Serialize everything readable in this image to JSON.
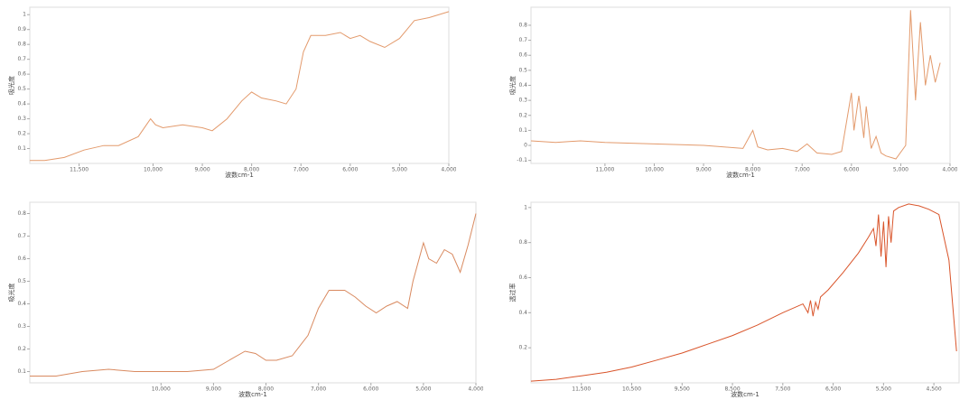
{
  "chart_data": [
    {
      "type": "line",
      "x_label": "波数cm-1",
      "y_label": "吸光度",
      "color": "#e39a6c",
      "xlim": [
        12500,
        4000
      ],
      "ylim": [
        0,
        1.05
      ],
      "xticks": [
        {
          "value": 11500,
          "label": "11,500"
        },
        {
          "value": 10000,
          "label": "10,000"
        },
        {
          "value": 9000,
          "label": "9,000"
        },
        {
          "value": 8000,
          "label": "8,000"
        },
        {
          "value": 7000,
          "label": "7,000"
        },
        {
          "value": 6000,
          "label": "6,000"
        },
        {
          "value": 5000,
          "label": "5,000"
        },
        {
          "value": 4000,
          "label": "4,000"
        }
      ],
      "yticks": [
        0.1,
        0.2,
        0.3,
        0.4,
        0.5,
        0.6,
        0.7,
        0.8,
        0.9,
        1
      ],
      "x": [
        12500,
        12200,
        11800,
        11400,
        11000,
        10700,
        10300,
        10050,
        9950,
        9800,
        9400,
        9000,
        8800,
        8500,
        8200,
        8000,
        7800,
        7500,
        7300,
        7100,
        6950,
        6800,
        6500,
        6200,
        6000,
        5800,
        5600,
        5300,
        5000,
        4700,
        4400,
        4000
      ],
      "values": [
        0.02,
        0.02,
        0.04,
        0.09,
        0.12,
        0.12,
        0.18,
        0.3,
        0.26,
        0.24,
        0.26,
        0.24,
        0.22,
        0.3,
        0.42,
        0.48,
        0.44,
        0.42,
        0.4,
        0.5,
        0.75,
        0.86,
        0.86,
        0.88,
        0.84,
        0.86,
        0.82,
        0.78,
        0.84,
        0.96,
        0.98,
        1.02
      ]
    },
    {
      "type": "line",
      "x_label": "波数cm-1",
      "y_label": "吸光度",
      "color": "#e39a6c",
      "xlim": [
        12500,
        4000
      ],
      "ylim": [
        -0.12,
        0.92
      ],
      "xticks": [
        {
          "value": 11000,
          "label": "11,000"
        },
        {
          "value": 10000,
          "label": "10,000"
        },
        {
          "value": 9000,
          "label": "9,000"
        },
        {
          "value": 8000,
          "label": "8,000"
        },
        {
          "value": 7000,
          "label": "7,000"
        },
        {
          "value": 6000,
          "label": "6,000"
        },
        {
          "value": 5000,
          "label": "5,000"
        },
        {
          "value": 4000,
          "label": "4,000"
        }
      ],
      "yticks": [
        -0.1,
        0,
        0.1,
        0.2,
        0.3,
        0.4,
        0.5,
        0.6,
        0.7,
        0.8
      ],
      "x": [
        12500,
        12000,
        11500,
        11000,
        10000,
        9000,
        8200,
        8000,
        7900,
        7700,
        7400,
        7100,
        6900,
        6700,
        6400,
        6200,
        6000,
        5950,
        5850,
        5750,
        5700,
        5600,
        5500,
        5400,
        5300,
        5100,
        4900,
        4800,
        4700,
        4600,
        4500,
        4400,
        4300,
        4200
      ],
      "values": [
        0.03,
        0.02,
        0.03,
        0.02,
        0.01,
        0.0,
        -0.02,
        0.1,
        -0.01,
        -0.03,
        -0.02,
        -0.04,
        0.01,
        -0.05,
        -0.06,
        -0.04,
        0.35,
        0.1,
        0.33,
        0.05,
        0.26,
        -0.02,
        0.06,
        -0.05,
        -0.07,
        -0.09,
        0.0,
        0.9,
        0.3,
        0.82,
        0.4,
        0.6,
        0.42,
        0.55
      ]
    },
    {
      "type": "line",
      "x_label": "波数cm-1",
      "y_label": "吸光度",
      "color": "#d98a60",
      "xlim": [
        12500,
        4000
      ],
      "ylim": [
        0.05,
        0.85
      ],
      "xticks": [
        {
          "value": 10000,
          "label": "10,000"
        },
        {
          "value": 9000,
          "label": "9,000"
        },
        {
          "value": 8000,
          "label": "8,000"
        },
        {
          "value": 7000,
          "label": "7,000"
        },
        {
          "value": 6000,
          "label": "6,000"
        },
        {
          "value": 5000,
          "label": "5,000"
        },
        {
          "value": 4000,
          "label": "4,000"
        }
      ],
      "yticks": [
        0.1,
        0.2,
        0.3,
        0.4,
        0.5,
        0.6,
        0.7,
        0.8
      ],
      "x": [
        12500,
        12000,
        11500,
        11000,
        10500,
        10000,
        9500,
        9000,
        8700,
        8400,
        8200,
        8000,
        7800,
        7500,
        7200,
        7000,
        6800,
        6500,
        6300,
        6100,
        5900,
        5700,
        5500,
        5300,
        5200,
        5000,
        4900,
        4750,
        4600,
        4450,
        4300,
        4150,
        4000
      ],
      "values": [
        0.08,
        0.08,
        0.1,
        0.11,
        0.1,
        0.1,
        0.1,
        0.11,
        0.15,
        0.19,
        0.18,
        0.15,
        0.15,
        0.17,
        0.26,
        0.38,
        0.46,
        0.46,
        0.43,
        0.39,
        0.36,
        0.39,
        0.41,
        0.38,
        0.5,
        0.67,
        0.6,
        0.58,
        0.64,
        0.62,
        0.54,
        0.66,
        0.8
      ]
    },
    {
      "type": "line",
      "x_label": "波数cm-1",
      "y_label": "透过率",
      "color": "#d9542a",
      "xlim": [
        12500,
        4000
      ],
      "ylim": [
        0,
        1.03
      ],
      "xticks": [
        {
          "value": 11500,
          "label": "11,500"
        },
        {
          "value": 10500,
          "label": "10,500"
        },
        {
          "value": 9500,
          "label": "9,500"
        },
        {
          "value": 8500,
          "label": "8,500"
        },
        {
          "value": 7500,
          "label": "7,500"
        },
        {
          "value": 6500,
          "label": "6,500"
        },
        {
          "value": 5500,
          "label": "5,500"
        },
        {
          "value": 4500,
          "label": "4,500"
        }
      ],
      "yticks": [
        0.2,
        0.4,
        0.6,
        0.8,
        1
      ],
      "x": [
        12500,
        12000,
        11500,
        11000,
        10500,
        10000,
        9500,
        9000,
        8500,
        8000,
        7500,
        7100,
        7000,
        6950,
        6900,
        6850,
        6800,
        6750,
        6600,
        6300,
        6000,
        5800,
        5700,
        5650,
        5600,
        5550,
        5500,
        5450,
        5400,
        5350,
        5300,
        5200,
        5000,
        4800,
        4600,
        4400,
        4200,
        4050
      ],
      "values": [
        0.01,
        0.02,
        0.04,
        0.06,
        0.09,
        0.13,
        0.17,
        0.22,
        0.27,
        0.33,
        0.4,
        0.45,
        0.4,
        0.47,
        0.38,
        0.46,
        0.42,
        0.49,
        0.53,
        0.63,
        0.74,
        0.83,
        0.88,
        0.78,
        0.96,
        0.72,
        0.92,
        0.66,
        0.95,
        0.8,
        0.98,
        1.0,
        1.02,
        1.01,
        0.99,
        0.96,
        0.7,
        0.18
      ]
    }
  ]
}
